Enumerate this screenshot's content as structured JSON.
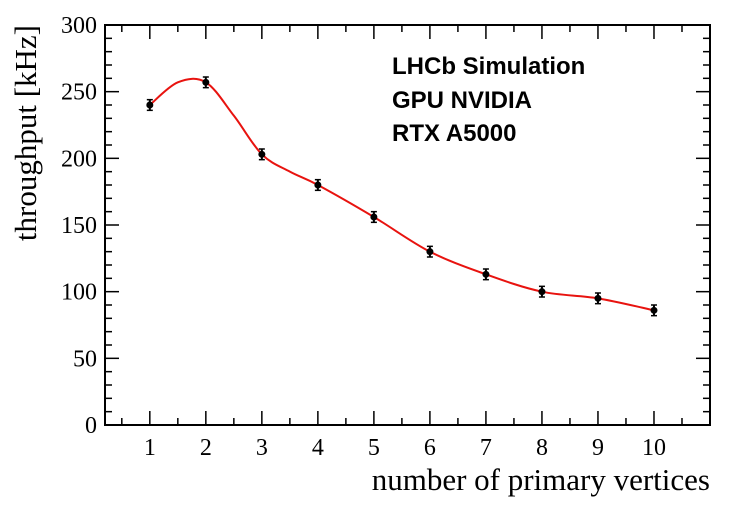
{
  "chart_data": {
    "type": "line",
    "title": "",
    "xlabel": "number of primary vertices",
    "ylabel": "throughput [kHz]",
    "xlim": [
      0.2,
      11.0
    ],
    "ylim": [
      0,
      300
    ],
    "x_ticks": [
      1,
      2,
      3,
      4,
      5,
      6,
      7,
      8,
      9,
      10
    ],
    "y_ticks": [
      0,
      50,
      100,
      150,
      200,
      250,
      300
    ],
    "grid": false,
    "annotations": [
      "LHCb Simulation",
      "GPU NVIDIA",
      "RTX A5000"
    ],
    "series": [
      {
        "name": "throughput",
        "marker_color": "#000000",
        "x": [
          1,
          2,
          3,
          4,
          5,
          6,
          7,
          8,
          9,
          10
        ],
        "values": [
          240,
          257,
          203,
          180,
          156,
          130,
          113,
          100,
          95,
          86
        ],
        "errors": [
          4,
          4,
          4,
          4,
          4,
          4,
          4,
          4,
          4,
          4
        ]
      }
    ],
    "fit_curve": {
      "name": "smooth fit",
      "color": "#e8130f",
      "x": [
        1,
        1.5,
        2,
        2.5,
        3,
        3.5,
        4,
        5,
        6,
        7,
        8,
        9,
        10
      ],
      "values": [
        240,
        257,
        257,
        232,
        203,
        190,
        180,
        156,
        130,
        113,
        100,
        95,
        86
      ]
    }
  }
}
